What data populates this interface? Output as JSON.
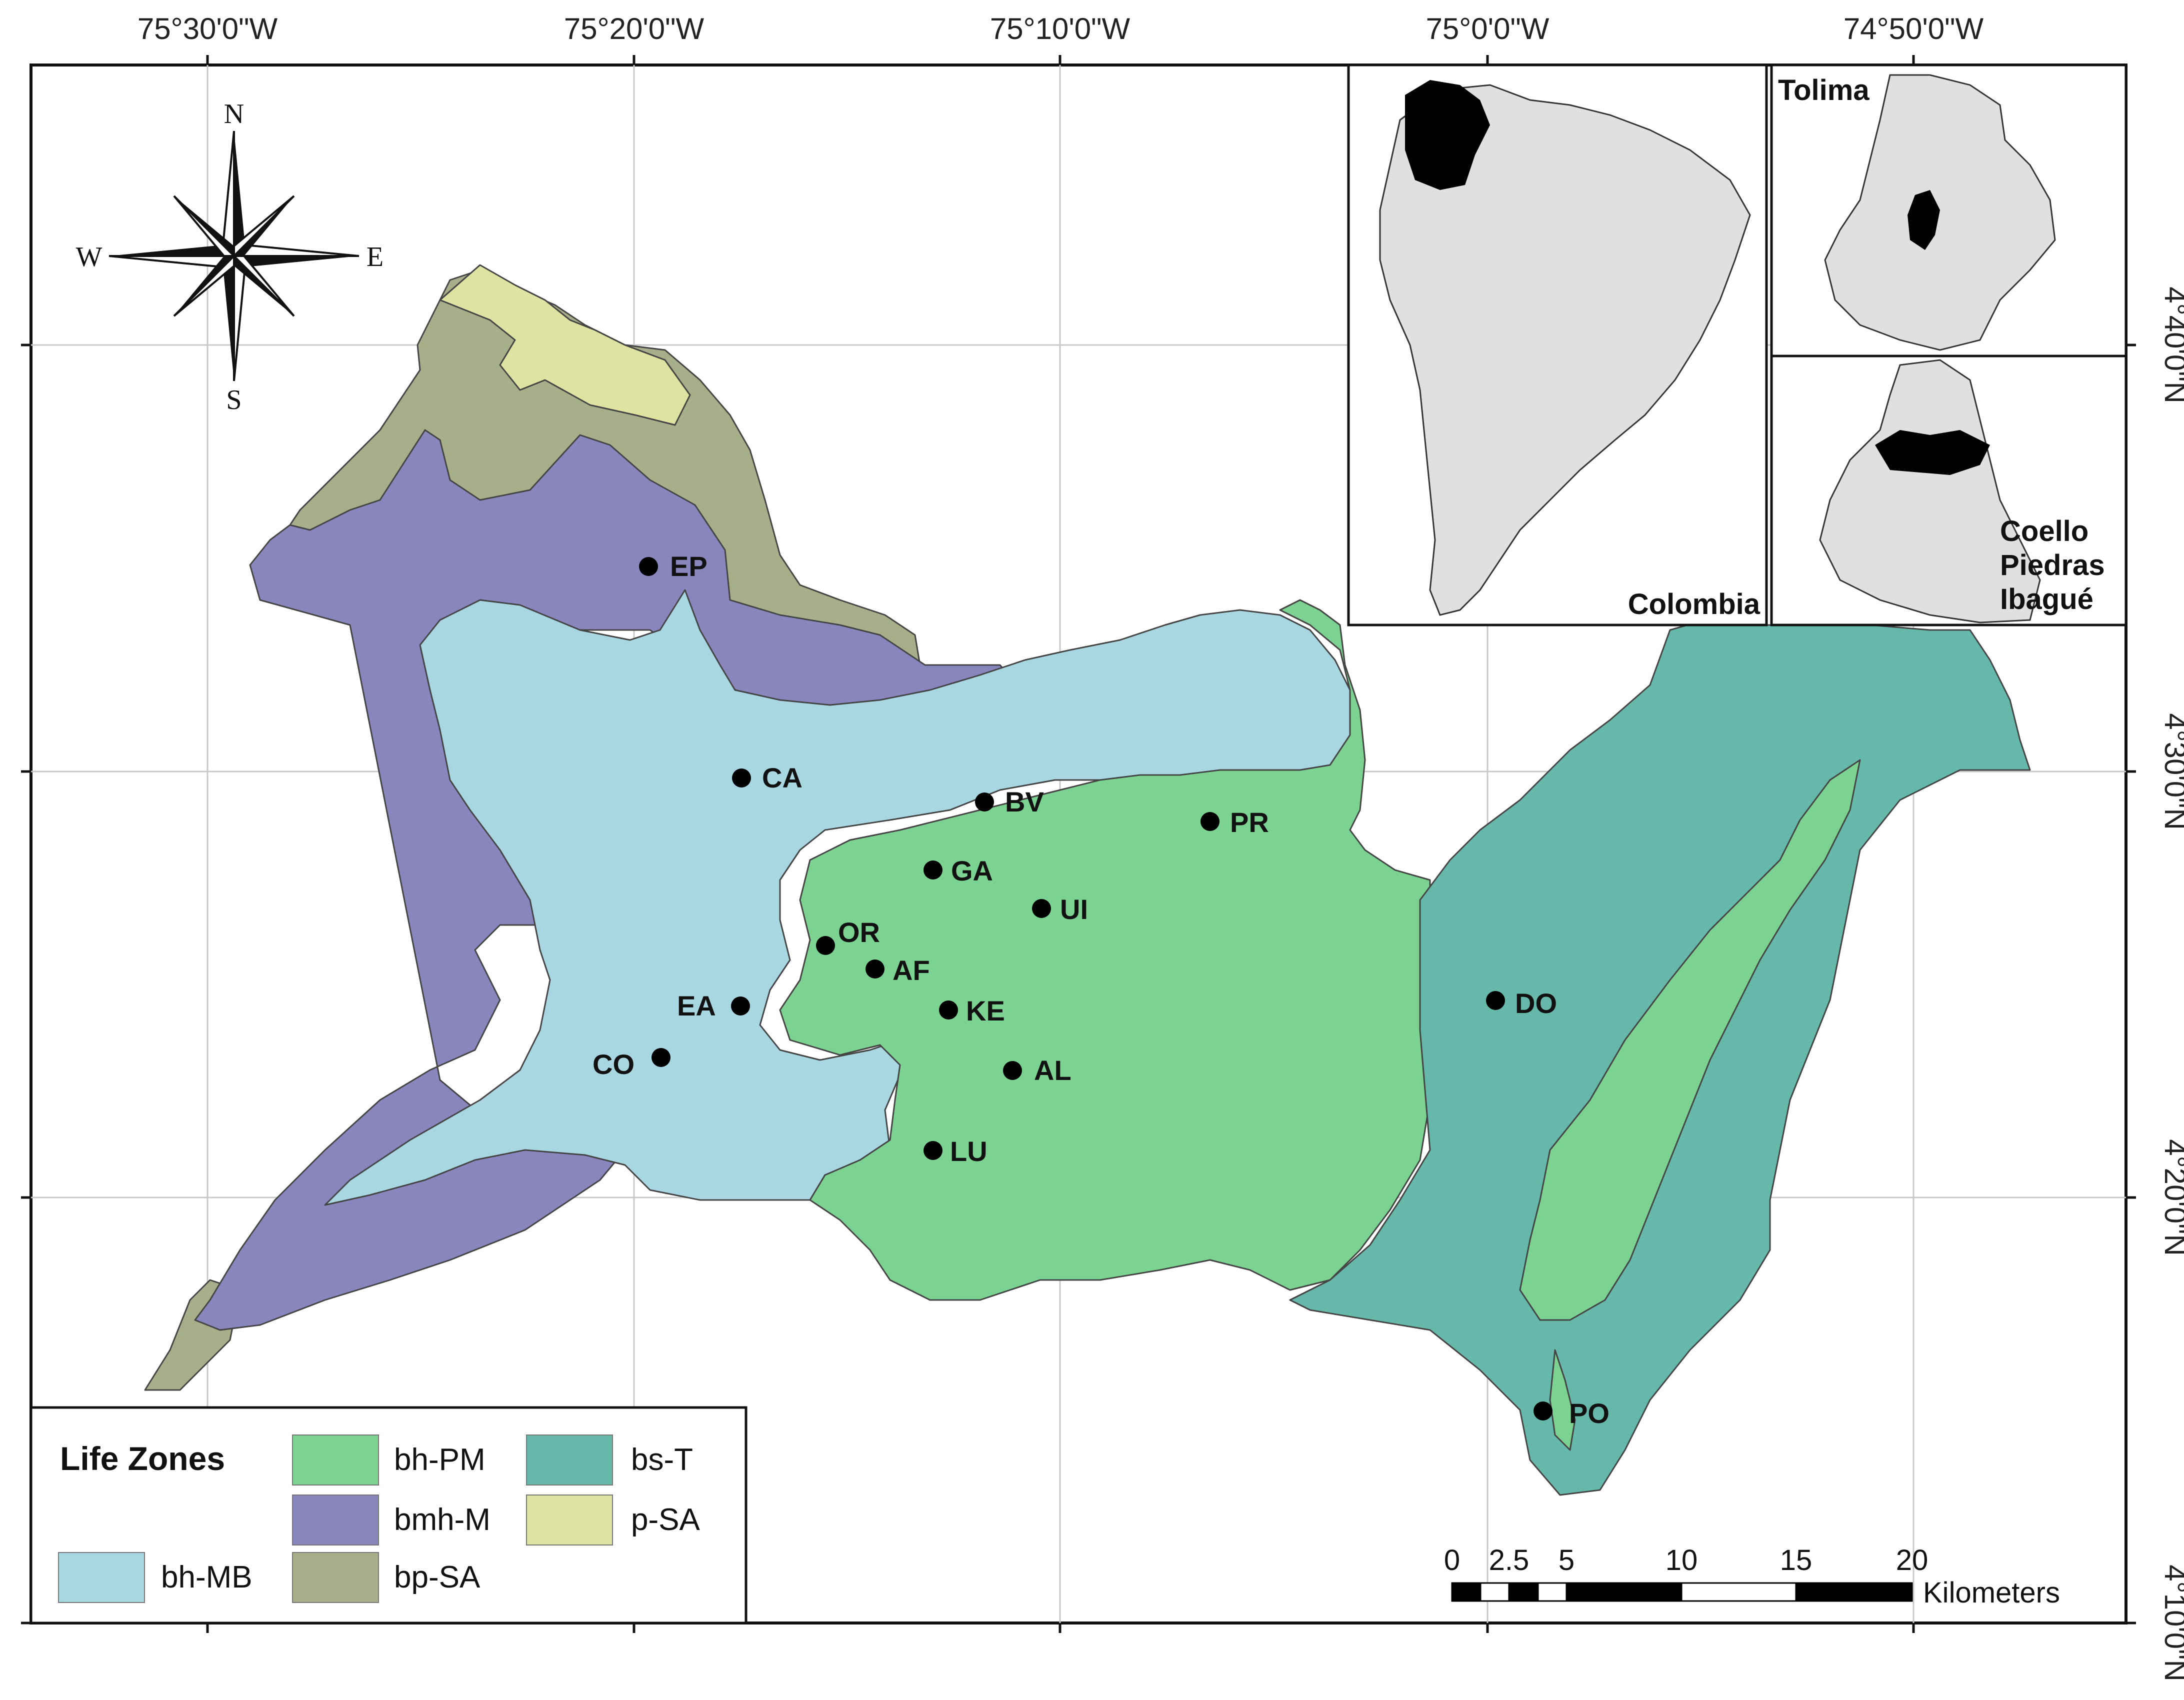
{
  "colors": {
    "bh_PM": "#7cd291",
    "bmh_M": "#8986bd",
    "bs_T": "#65b8aa",
    "p_SA": "#dfe3a2",
    "bh_MB": "#a8d6e1",
    "bp_SA": "#a7ae8a",
    "site": "#000000",
    "inset_land": "#e0e0e0",
    "inset_highlight": "#000000"
  },
  "coordinates": {
    "top": [
      "75°30'0\"W",
      "75°20'0\"W",
      "75°10'0\"W",
      "75°0'0\"W",
      "74°50'0\"W"
    ],
    "right": [
      "4°40'0\"N",
      "4°30'0\"N",
      "4°20'0\"N",
      "4°10'0\"N"
    ]
  },
  "compass": {
    "n": "N",
    "s": "S",
    "e": "E",
    "w": "W"
  },
  "sites": [
    {
      "code": "EP"
    },
    {
      "code": "CA"
    },
    {
      "code": "BV"
    },
    {
      "code": "PR"
    },
    {
      "code": "GA"
    },
    {
      "code": "UI"
    },
    {
      "code": "OR"
    },
    {
      "code": "AF"
    },
    {
      "code": "EA"
    },
    {
      "code": "KE"
    },
    {
      "code": "CO"
    },
    {
      "code": "AL"
    },
    {
      "code": "LU"
    },
    {
      "code": "DO"
    },
    {
      "code": "PO"
    }
  ],
  "insets": {
    "country_label": "Colombia",
    "department_label": "Tolima",
    "basin_label_lines": [
      "Coello",
      "Piedras",
      "Ibagué"
    ]
  },
  "legend": {
    "title": "Life Zones",
    "items": [
      {
        "key": "bh_PM",
        "label": "bh-PM"
      },
      {
        "key": "bs_T",
        "label": "bs-T"
      },
      {
        "key": "bmh_M",
        "label": "bmh-M"
      },
      {
        "key": "p_SA",
        "label": "p-SA"
      },
      {
        "key": "bh_MB",
        "label": "bh-MB"
      },
      {
        "key": "bp_SA",
        "label": "bp-SA"
      }
    ]
  },
  "scale_bar": {
    "ticks": [
      "0",
      "2.5",
      "5",
      "10",
      "15",
      "20"
    ],
    "unit": "Kilometers"
  }
}
